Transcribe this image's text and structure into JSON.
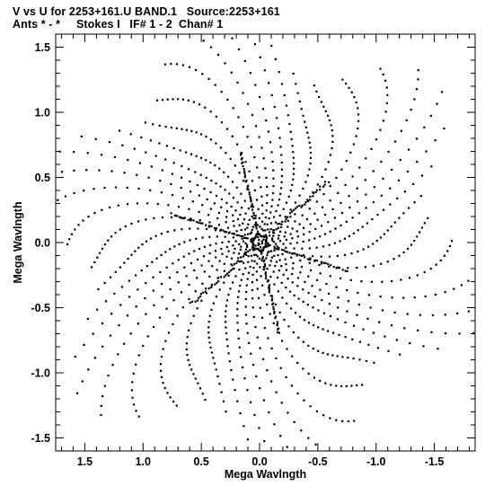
{
  "header": {
    "title_line1": "V vs U for 2253+161.U BAND.1   Source:2253+161",
    "title_line2": "Ants * - *     Stokes I   IF# 1 - 2  Chan# 1"
  },
  "chart_data": {
    "type": "scatter",
    "title": "V vs U for 2253+161.U BAND.1   Source:2253+161",
    "subtitle": "Ants * - *     Stokes I   IF# 1 - 2  Chan# 1",
    "xlabel": "Mega Wavlngth",
    "ylabel": "Mega Wavlngth",
    "xlim": [
      1.75,
      -1.85
    ],
    "ylim": [
      -1.6,
      1.6
    ],
    "x_ticks": [
      1.5,
      1.0,
      0.5,
      0.0,
      -0.5,
      -1.0,
      -1.5
    ],
    "x_tick_labels": [
      "1.5",
      "1.0",
      "0.5",
      "0.0",
      "-0.5",
      "-1.0",
      "-1.5"
    ],
    "y_ticks": [
      1.5,
      1.0,
      0.5,
      0.0,
      -0.5,
      -1.0,
      -1.5
    ],
    "y_tick_labels": [
      "1.5",
      "1.0",
      "0.5",
      "0.0",
      "-0.5",
      "-1.0",
      "-1.5"
    ],
    "grid": false,
    "legend": "none",
    "marker_color": "#000000",
    "pattern": "uv-coverage",
    "baseline_directions_deg": [
      18,
      78,
      138,
      198,
      258,
      318
    ],
    "max_radius": 1.55,
    "num_tracks": 26,
    "points_per_track": 46
  }
}
